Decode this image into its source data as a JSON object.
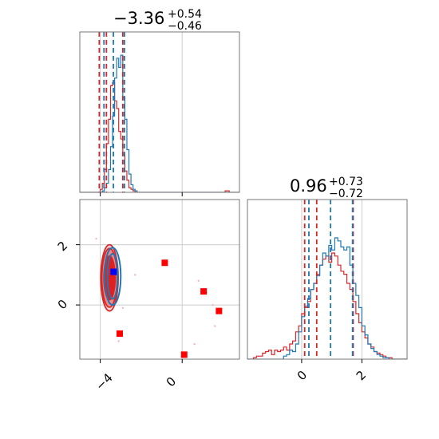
{
  "chart_data": {
    "type": "corner",
    "colors": {
      "blue": "#1f77b4",
      "red": "#d62728",
      "red_fill": "#ef8a8a",
      "red_core": "#e02020",
      "grid": "#cccccc",
      "marker_blue": "#0000ff",
      "marker_red": "#ff0000"
    },
    "grid": true,
    "params": [
      {
        "title_value": "−3.36",
        "title_upper": "+0.54",
        "title_lower": "−0.46",
        "range": [
          -5.0,
          2.8
        ],
        "ticks": [
          -4,
          0
        ],
        "tick_labels": [
          "−4",
          "0"
        ]
      },
      {
        "title_value": "0.96",
        "title_upper": "+0.73",
        "title_lower": "−0.72",
        "range": [
          -1.8,
          3.5
        ],
        "ticks": [
          0,
          2
        ],
        "tick_labels": [
          "0",
          "2"
        ]
      }
    ],
    "hist1d": [
      {
        "param": 0,
        "ylim": [
          0,
          1
        ],
        "bin_start": -5.0,
        "bin_width": 0.1,
        "blue": [
          0,
          0,
          0,
          0,
          0,
          0,
          0,
          0,
          0,
          0,
          0,
          0.01,
          0.03,
          0.06,
          0.15,
          0.3,
          0.5,
          0.75,
          0.88,
          0.82,
          0.9,
          0.62,
          0.48,
          0.28,
          0.12,
          0.05,
          0.02,
          0.01,
          0,
          0,
          0,
          0,
          0,
          0,
          0,
          0,
          0,
          0,
          0,
          0,
          0,
          0,
          0,
          0,
          0,
          0,
          0,
          0,
          0,
          0,
          0,
          0,
          0,
          0,
          0,
          0,
          0,
          0,
          0,
          0,
          0,
          0,
          0,
          0,
          0,
          0,
          0,
          0,
          0,
          0,
          0,
          0,
          0,
          0,
          0,
          0,
          0,
          0
        ],
        "red": [
          0,
          0,
          0,
          0,
          0,
          0,
          0,
          0,
          0,
          0,
          0.02,
          0.06,
          0.15,
          0.32,
          0.48,
          0.7,
          0.72,
          0.6,
          0.55,
          0.4,
          0.35,
          0.25,
          0.14,
          0.08,
          0.03,
          0.02,
          0.01,
          0,
          0,
          0,
          0,
          0,
          0,
          0,
          0,
          0,
          0,
          0,
          0,
          0,
          0,
          0,
          0,
          0,
          0,
          0,
          0,
          0,
          0,
          0,
          0,
          0,
          0,
          0,
          0,
          0,
          0,
          0,
          0,
          0,
          0,
          0,
          0,
          0,
          0,
          0,
          0,
          0,
          0,
          0,
          0,
          0.01,
          0.01,
          0,
          0,
          0,
          0,
          0
        ],
        "blue_lines": [
          -3.82,
          -3.36,
          -2.82
        ],
        "red_lines": [
          -4.05,
          -3.7,
          -2.9
        ]
      },
      {
        "param": 1,
        "ylim": [
          0,
          1
        ],
        "bin_start": -1.8,
        "bin_width": 0.1,
        "blue": [
          0,
          0,
          0,
          0,
          0,
          0,
          0,
          0,
          0,
          0,
          0,
          0,
          0.02,
          0.03,
          0.06,
          0.05,
          0.1,
          0.18,
          0.28,
          0.35,
          0.4,
          0.46,
          0.5,
          0.55,
          0.62,
          0.7,
          0.68,
          0.75,
          0.72,
          0.8,
          0.78,
          0.74,
          0.72,
          0.74,
          0.62,
          0.5,
          0.42,
          0.34,
          0.22,
          0.16,
          0.1,
          0.07,
          0.05,
          0.03,
          0.02,
          0.01,
          0.01,
          0,
          0,
          0,
          0,
          0,
          0
        ],
        "red": [
          0,
          0,
          0.01,
          0.02,
          0.02,
          0.04,
          0.05,
          0.06,
          0.03,
          0.06,
          0.05,
          0.06,
          0.08,
          0.06,
          0.1,
          0.12,
          0.18,
          0.22,
          0.3,
          0.34,
          0.38,
          0.46,
          0.5,
          0.56,
          0.62,
          0.66,
          0.68,
          0.64,
          0.7,
          0.68,
          0.62,
          0.58,
          0.56,
          0.5,
          0.46,
          0.38,
          0.3,
          0.24,
          0.18,
          0.14,
          0.1,
          0.08,
          0.05,
          0.04,
          0.03,
          0.02,
          0.01,
          0.01,
          0,
          0,
          0,
          0,
          0
        ],
        "blue_lines": [
          0.24,
          0.96,
          1.69
        ],
        "red_lines": [
          0.1,
          0.5,
          1.71
        ]
      }
    ],
    "hist2d": {
      "x_param": 0,
      "y_param": 1,
      "red_center": [
        -3.55,
        0.9
      ],
      "red_radii": [
        [
          0.55,
          1.45
        ],
        [
          0.75,
          1.95
        ],
        [
          0.85,
          2.2
        ]
      ],
      "blue_center": [
        -3.4,
        0.95
      ],
      "blue_radii": [
        [
          0.5,
          1.5
        ],
        [
          0.8,
          1.9
        ]
      ],
      "scatter_points": [
        [
          -2.3,
          1.0
        ],
        [
          0.8,
          0.8
        ],
        [
          1.5,
          0.0
        ],
        [
          1.6,
          -0.7
        ],
        [
          -3.1,
          -1.2
        ],
        [
          0.6,
          -1.3
        ],
        [
          -4.2,
          2.2
        ],
        [
          -2.9,
          -0.1
        ]
      ],
      "blue_marker": [
        -3.35,
        1.1
      ],
      "red_markers": [
        [
          -0.85,
          1.4
        ],
        [
          1.05,
          0.45
        ],
        [
          1.8,
          -0.2
        ],
        [
          -3.05,
          -0.95
        ],
        [
          0.1,
          -1.65
        ]
      ]
    }
  }
}
